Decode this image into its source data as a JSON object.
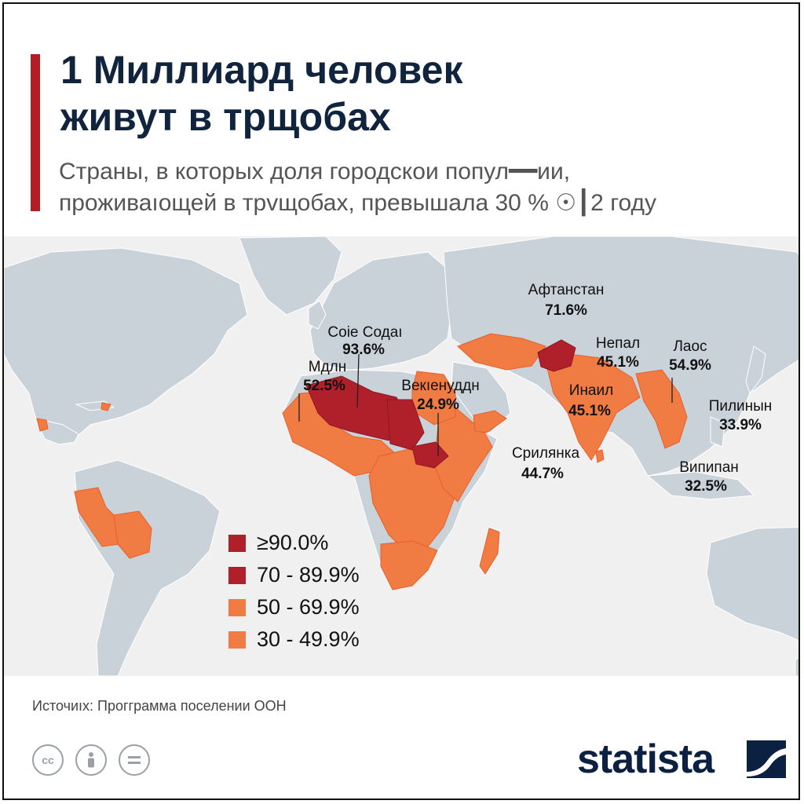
{
  "header": {
    "title_line1": "1 Миллиард человек",
    "title_line2": "живут в трщобах",
    "subtitle_line1": "Страны, в которых доля городскои попул━━ии,",
    "subtitle_line2": "проживаıощей в трvщобах, превышала 30 % ☉┃2 году",
    "accent_color": "#b31d24"
  },
  "map": {
    "land_color": "#c9d1d9",
    "ocean_color": "#f0f0f0",
    "labels": [
      {
        "name": "Афтанстан",
        "value": "71.6%"
      },
      {
        "name": "Соіе Содаı",
        "value": "93.6%"
      },
      {
        "name": "Мдлн",
        "value": "52.5%"
      },
      {
        "name": "Векıенуддн",
        "value": "24.9%"
      },
      {
        "name": "Непал",
        "value": "45.1%"
      },
      {
        "name": "Лаос",
        "value": "54.9%"
      },
      {
        "name": "Инаил",
        "value": "45.1%"
      },
      {
        "name": "Пилинын",
        "value": "33.9%"
      },
      {
        "name": "Срилянка",
        "value": "44.7%"
      },
      {
        "name": "Випипан",
        "value": "32.5%"
      }
    ]
  },
  "legend": {
    "items": [
      {
        "label": "≥90.0%",
        "color": "#b0202a"
      },
      {
        "label": "70 - 89.9%",
        "color": "#b0202a"
      },
      {
        "label": "50 - 69.9%",
        "color": "#f07b43"
      },
      {
        "label": "30 - 49.9%",
        "color": "#f07b43"
      }
    ]
  },
  "footer": {
    "source": "Источиıх: Проггрaмма поселении ООН",
    "cc_icon_text": "cc",
    "brand": "statista",
    "brand_color": "#0c2141"
  }
}
